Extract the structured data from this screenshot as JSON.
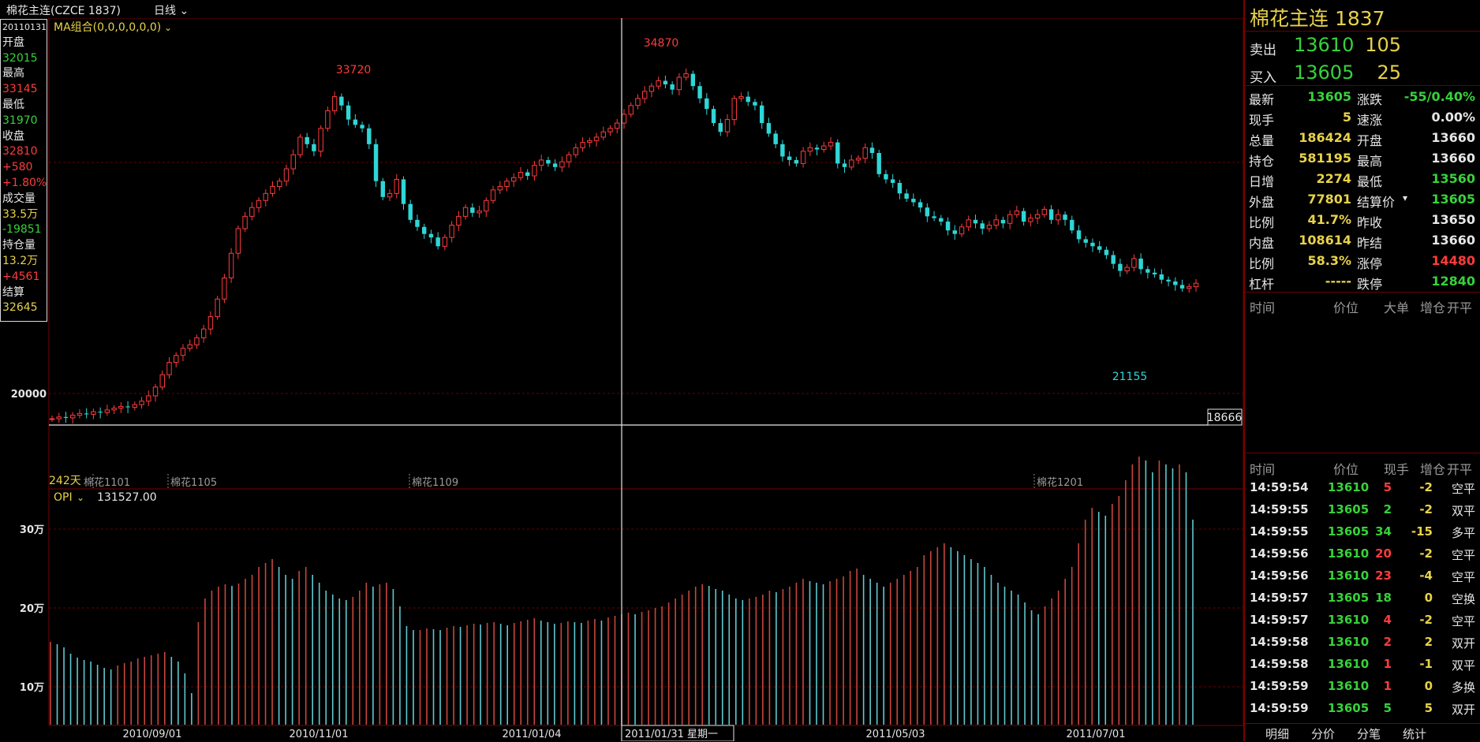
{
  "window": {
    "title": "棉花主连(CZCE 1837)",
    "period": "日线"
  },
  "info_panel": [
    {
      "text": "20110131",
      "color": "#e6e6e6"
    },
    {
      "text": "开盘",
      "color": "#e6e6e6"
    },
    {
      "text": "32015",
      "color": "#37d23a"
    },
    {
      "text": "最高",
      "color": "#e6e6e6"
    },
    {
      "text": "33145",
      "color": "#ff3b3b"
    },
    {
      "text": "最低",
      "color": "#e6e6e6"
    },
    {
      "text": "31970",
      "color": "#37d23a"
    },
    {
      "text": "收盘",
      "color": "#e6e6e6"
    },
    {
      "text": "32810",
      "color": "#ff3b3b"
    },
    {
      "text": "+580",
      "color": "#ff3b3b"
    },
    {
      "text": "+1.80%",
      "color": "#ff3b3b"
    },
    {
      "text": "成交量",
      "color": "#e6e6e6"
    },
    {
      "text": "33.5万",
      "color": "#e8d24a"
    },
    {
      "text": "-19851",
      "color": "#37d23a"
    },
    {
      "text": "持仓量",
      "color": "#e6e6e6"
    },
    {
      "text": "13.2万",
      "color": "#e8d24a"
    },
    {
      "text": "+4561",
      "color": "#ff3b3b"
    },
    {
      "text": "结算",
      "color": "#e6e6e6"
    },
    {
      "text": "32645",
      "color": "#e8d24a"
    }
  ],
  "price_chart": {
    "indicator_label": "MA组合(0,0,0,0,0,0)",
    "y_tick_label": "20000",
    "cursor_price": "18666",
    "high_label_1": "33720",
    "high_label_2": "34870",
    "low_label": "21155",
    "days_label": "242天",
    "contracts": [
      "棉花1101",
      "棉花1105",
      "棉花1109",
      "棉花1201"
    ]
  },
  "opi_chart": {
    "indicator": "OPI",
    "value": "131527.00",
    "y_ticks": [
      "30万",
      "20万",
      "10万"
    ]
  },
  "x_axis": {
    "dates": [
      "2010/09/01",
      "2010/11/01",
      "2011/01/04",
      "2011/05/03",
      "2011/07/01"
    ],
    "cursor_date": "2011/01/31 星期一"
  },
  "chart_data": {
    "type": "candlestick",
    "title": "棉花主连(CZCE 1837)",
    "ylim": [
      12000,
      37000
    ],
    "highs": [
      33720,
      34870
    ],
    "low": 21155,
    "closes": [
      15000,
      15100,
      15050,
      15200,
      15300,
      15250,
      15400,
      15350,
      15500,
      15600,
      15700,
      15650,
      15800,
      16000,
      16300,
      16800,
      17500,
      18200,
      18600,
      19000,
      19200,
      19600,
      20100,
      20800,
      21800,
      23000,
      24400,
      25800,
      26500,
      27000,
      27400,
      27800,
      28200,
      28500,
      29200,
      30000,
      31000,
      30600,
      30200,
      31500,
      32500,
      33300,
      32800,
      32000,
      31700,
      31500,
      30600,
      28500,
      27600,
      27800,
      28600,
      27200,
      26300,
      25900,
      25500,
      25300,
      24800,
      25300,
      26000,
      26500,
      27000,
      26700,
      26800,
      27400,
      28000,
      28200,
      28500,
      28700,
      29000,
      28800,
      29400,
      29700,
      29500,
      29300,
      29600,
      30000,
      30400,
      30700,
      30800,
      31000,
      31300,
      31500,
      31800,
      32300,
      32800,
      33200,
      33600,
      33900,
      34200,
      34000,
      33700,
      34400,
      34600,
      33900,
      33200,
      32600,
      31800,
      31300,
      32000,
      33200,
      33300,
      33000,
      32800,
      31800,
      31200,
      30600,
      29900,
      29700,
      29500,
      30200,
      30400,
      30300,
      30500,
      30700,
      29500,
      29300,
      29700,
      29800,
      30400,
      30100,
      28900,
      28600,
      28400,
      27800,
      27500,
      27300,
      27000,
      26500,
      26400,
      26200,
      25700,
      25500,
      25900,
      26300,
      26100,
      25800,
      26000,
      26300,
      26100,
      26600,
      26800,
      26200,
      26400,
      26600,
      26900,
      26300,
      26600,
      26300,
      25700,
      25200,
      25000,
      24800,
      24600,
      24300,
      23800,
      23400,
      23600,
      24100,
      23500,
      23300,
      23200,
      22900,
      22800,
      22600,
      22400,
      22500,
      22700
    ],
    "open_interest_wan": [
      10.5,
      10.2,
      9.8,
      9.0,
      8.5,
      8.2,
      8.0,
      7.6,
      7.2,
      7.0,
      7.5,
      7.8,
      8.0,
      8.4,
      8.6,
      8.8,
      9.0,
      9.2,
      8.6,
      8.0,
      6.5,
      4.0,
      13.0,
      16.0,
      17.0,
      17.5,
      17.8,
      17.6,
      17.9,
      18.5,
      19.0,
      20.0,
      20.5,
      21.0,
      20.0,
      19.0,
      18.5,
      19.5,
      20.0,
      19.0,
      18.0,
      17.0,
      16.5,
      16.0,
      15.8,
      16.2,
      17.0,
      18.0,
      17.5,
      17.8,
      18.0,
      17.2,
      15.0,
      12.5,
      12.0,
      12.0,
      12.2,
      12.1,
      12.0,
      12.3,
      12.5,
      12.4,
      12.6,
      12.8,
      12.7,
      12.9,
      13.0,
      12.8,
      12.6,
      12.9,
      13.1,
      13.3,
      13.5,
      13.2,
      13.0,
      12.8,
      12.9,
      13.1,
      13.0,
      12.9,
      13.2,
      13.4,
      13.2,
      13.6,
      13.8,
      14.0,
      14.2,
      14.0,
      14.3,
      14.5,
      14.8,
      15.0,
      15.5,
      16.0,
      16.5,
      17.0,
      17.5,
      17.8,
      17.6,
      17.2,
      17.0,
      16.5,
      16.0,
      15.8,
      16.0,
      16.2,
      16.5,
      17.0,
      16.8,
      17.2,
      17.5,
      18.0,
      18.5,
      18.2,
      18.0,
      17.8,
      18.2,
      18.5,
      18.8,
      19.5,
      19.8,
      19.0,
      18.5,
      18.0,
      17.5,
      18.0,
      18.5,
      19.0,
      19.5,
      20.0,
      21.5,
      22.0,
      22.5,
      23.0,
      22.5,
      22.0,
      21.5,
      21.0,
      20.5,
      20.0,
      19.0,
      18.0,
      17.5,
      17.0,
      16.5,
      15.5,
      14.5,
      14.0,
      15.0,
      16.0,
      17.0,
      18.5,
      20.0,
      23.0,
      26.0,
      27.5,
      27.0,
      26.5,
      28.0,
      29.0,
      31.0,
      33.0,
      34.0,
      33.5,
      32.0,
      33.5,
      33.0,
      32.5,
      33.0,
      32.0,
      26.0
    ]
  },
  "quote": {
    "name": "棉花主连",
    "code": "1837",
    "sell_label": "卖出",
    "sell_price": "13610",
    "sell_vol": "105",
    "buy_label": "买入",
    "buy_price": "13605",
    "buy_vol": "25"
  },
  "stats_left": [
    {
      "k": "最新",
      "v": "13605",
      "color": "#37d23a"
    },
    {
      "k": "现手",
      "v": "5",
      "color": "#e8d24a"
    },
    {
      "k": "总量",
      "v": "186424",
      "color": "#e8d24a"
    },
    {
      "k": "持仓",
      "v": "581195",
      "color": "#e8d24a"
    },
    {
      "k": "日增",
      "v": "2274",
      "color": "#e8d24a"
    },
    {
      "k": "外盘",
      "v": "77801",
      "color": "#e8d24a"
    },
    {
      "k": "比例",
      "v": "41.7%",
      "color": "#e8d24a"
    },
    {
      "k": "内盘",
      "v": "108614",
      "color": "#e8d24a"
    },
    {
      "k": "比例",
      "v": "58.3%",
      "color": "#e8d24a"
    },
    {
      "k": "杠杆",
      "v": "-----",
      "color": "#e8d24a"
    }
  ],
  "stats_right": [
    {
      "k": "涨跌",
      "v": "-55/0.40%",
      "color": "#37d23a"
    },
    {
      "k": "速涨",
      "v": "0.00%",
      "color": "#e6e6e6"
    },
    {
      "k": "开盘",
      "v": "13660",
      "color": "#e6e6e6"
    },
    {
      "k": "最高",
      "v": "13660",
      "color": "#e6e6e6"
    },
    {
      "k": "最低",
      "v": "13560",
      "color": "#37d23a"
    },
    {
      "k": "结算价",
      "v": "13605",
      "color": "#37d23a"
    },
    {
      "k": "昨收",
      "v": "13650",
      "color": "#e6e6e6"
    },
    {
      "k": "昨结",
      "v": "13660",
      "color": "#e6e6e6"
    },
    {
      "k": "涨停",
      "v": "14480",
      "color": "#ff3b3b"
    },
    {
      "k": "跌停",
      "v": "12840",
      "color": "#37d23a"
    }
  ],
  "tape_header_1": [
    "时间",
    "价位",
    "大单",
    "增仓",
    "开平"
  ],
  "tape_header_2": [
    "时间",
    "价位",
    "现手",
    "增仓",
    "开平"
  ],
  "ticks": [
    {
      "time": "14:59:54",
      "price": "13610",
      "vol": "5",
      "chg": "-2",
      "type": "空平",
      "pc": "#37d23a",
      "vc": "#ff3b3b",
      "cc": "#e8d24a",
      "tc": "#e6e6e6"
    },
    {
      "time": "14:59:55",
      "price": "13605",
      "vol": "2",
      "chg": "-2",
      "type": "双平",
      "pc": "#37d23a",
      "vc": "#37d23a",
      "cc": "#e8d24a",
      "tc": "#e6e6e6"
    },
    {
      "time": "14:59:55",
      "price": "13605",
      "vol": "34",
      "chg": "-15",
      "type": "多平",
      "pc": "#37d23a",
      "vc": "#37d23a",
      "cc": "#e8d24a",
      "tc": "#e6e6e6"
    },
    {
      "time": "14:59:56",
      "price": "13610",
      "vol": "20",
      "chg": "-2",
      "type": "空平",
      "pc": "#37d23a",
      "vc": "#ff3b3b",
      "cc": "#e8d24a",
      "tc": "#e6e6e6"
    },
    {
      "time": "14:59:56",
      "price": "13610",
      "vol": "23",
      "chg": "-4",
      "type": "空平",
      "pc": "#37d23a",
      "vc": "#ff3b3b",
      "cc": "#e8d24a",
      "tc": "#e6e6e6"
    },
    {
      "time": "14:59:57",
      "price": "13605",
      "vol": "18",
      "chg": "0",
      "type": "空换",
      "pc": "#37d23a",
      "vc": "#37d23a",
      "cc": "#e8d24a",
      "tc": "#e6e6e6"
    },
    {
      "time": "14:59:57",
      "price": "13610",
      "vol": "4",
      "chg": "-2",
      "type": "空平",
      "pc": "#37d23a",
      "vc": "#ff3b3b",
      "cc": "#e8d24a",
      "tc": "#e6e6e6"
    },
    {
      "time": "14:59:58",
      "price": "13610",
      "vol": "2",
      "chg": "2",
      "type": "双开",
      "pc": "#37d23a",
      "vc": "#ff3b3b",
      "cc": "#e8d24a",
      "tc": "#e6e6e6"
    },
    {
      "time": "14:59:58",
      "price": "13610",
      "vol": "1",
      "chg": "-1",
      "type": "双平",
      "pc": "#37d23a",
      "vc": "#ff3b3b",
      "cc": "#e8d24a",
      "tc": "#e6e6e6"
    },
    {
      "time": "14:59:59",
      "price": "13610",
      "vol": "1",
      "chg": "0",
      "type": "多换",
      "pc": "#37d23a",
      "vc": "#ff3b3b",
      "cc": "#e8d24a",
      "tc": "#e6e6e6"
    },
    {
      "time": "14:59:59",
      "price": "13605",
      "vol": "5",
      "chg": "5",
      "type": "双开",
      "pc": "#37d23a",
      "vc": "#37d23a",
      "cc": "#e8d24a",
      "tc": "#e6e6e6"
    }
  ],
  "tabs": [
    "明细",
    "分价",
    "分笔",
    "统计"
  ]
}
